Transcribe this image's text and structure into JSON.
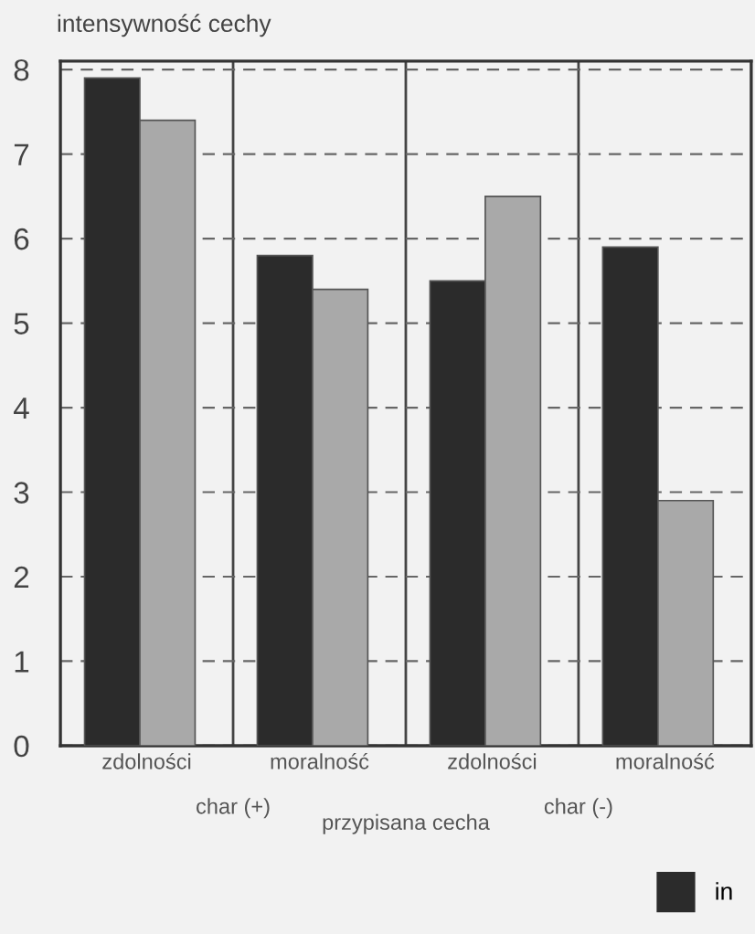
{
  "chart_data": {
    "type": "bar",
    "ylabel": "intensywność cechy",
    "xlabel": "przypisana cecha",
    "categories": [
      "zdolności",
      "moralność",
      "zdolności",
      "moralność"
    ],
    "series": [
      {
        "name": "in",
        "color": "#2b2b2b",
        "values": [
          7.9,
          5.8,
          5.5,
          5.9
        ]
      },
      {
        "color": "#a9a9a9",
        "values": [
          7.4,
          5.4,
          6.5,
          2.9
        ]
      }
    ],
    "annotations": [
      "char (+)",
      "char (-)"
    ],
    "ylim": [
      0,
      8.1
    ],
    "yticks": [
      0,
      1,
      2,
      3,
      4,
      5,
      6,
      7,
      8
    ],
    "grid": "y",
    "legend": "bottom right"
  }
}
